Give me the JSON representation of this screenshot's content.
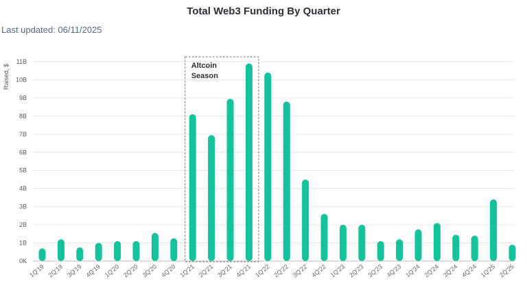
{
  "header": {
    "title": "Total Web3 Funding By Quarter",
    "updated": "Last updated: 06/11/2025"
  },
  "chart_data": {
    "type": "bar",
    "title": "Total Web3 Funding By Quarter",
    "xlabel": "",
    "ylabel": "Raised, $",
    "ylim": [
      0,
      11
    ],
    "y_ticks": [
      "0K",
      "1B",
      "2B",
      "3B",
      "4B",
      "5B",
      "6B",
      "7B",
      "8B",
      "9B",
      "10B",
      "11B"
    ],
    "grid": true,
    "bar_color": "#14c29c",
    "categories": [
      "1Q'19",
      "2Q'19",
      "3Q'19",
      "4Q'19",
      "1Q'20",
      "2Q'20",
      "3Q'20",
      "4Q'20",
      "1Q'21",
      "2Q'21",
      "3Q'21",
      "4Q'21",
      "1Q'22",
      "2Q'22",
      "3Q'22",
      "4Q'22",
      "1Q'23",
      "2Q'23",
      "3Q'23",
      "4Q'23",
      "1Q'24",
      "2Q'24",
      "3Q'24",
      "4Q'24",
      "1Q'25",
      "2Q'25"
    ],
    "values": [
      0.7,
      1.2,
      0.75,
      1.0,
      1.1,
      1.1,
      1.55,
      1.25,
      8.1,
      6.95,
      8.95,
      10.9,
      10.4,
      8.8,
      4.5,
      2.6,
      2.0,
      2.0,
      1.1,
      1.2,
      1.75,
      2.1,
      1.45,
      1.4,
      3.4,
      0.9
    ],
    "annotation": {
      "text_lines": [
        "Altcoin",
        "Season"
      ],
      "range_start": "1Q'21",
      "range_end": "4Q'21"
    }
  }
}
